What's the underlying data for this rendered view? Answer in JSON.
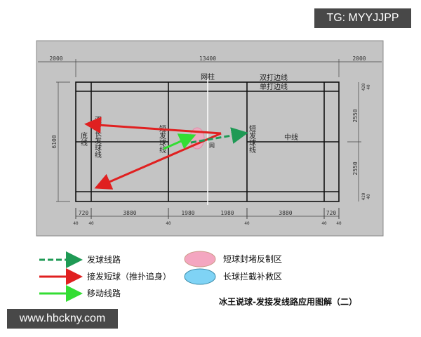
{
  "watermarks": {
    "top_right": "TG: MYYJJPP",
    "bottom_left": "www.hbckny.com"
  },
  "dimensions": {
    "top": [
      "2000",
      "13400",
      "2000"
    ],
    "left": "6100",
    "right": [
      "420",
      "40",
      "2550",
      "2550",
      "420",
      "40"
    ],
    "bottom": [
      "720",
      "3880",
      "1980",
      "1980",
      "3880",
      "720"
    ],
    "bottom_small": [
      "40",
      "40",
      "40",
      "40",
      "40",
      "40"
    ]
  },
  "court_labels": {
    "net_post": "网柱",
    "doubles_sideline": "双打边线",
    "singles_sideline": "单打边线",
    "baseline": "底线",
    "doubles_long_service_line": "双打长发球线",
    "short_service_line_left": "短发球线",
    "short_service_line_right": "短发球线",
    "center_line": "中线",
    "net": "网"
  },
  "legend": {
    "serve_route": "发球线路",
    "return_short": "接发短球（推扑追身）",
    "movement_route": "移动线路",
    "short_zone": "短球封堵反制区",
    "long_zone": "长球拦截补救区"
  },
  "colors": {
    "serve": "#1f9a55",
    "return": "#e02020",
    "move": "#33dd33",
    "short_zone": "#f4a6c0",
    "long_zone": "#7fd3f5",
    "panel": "#c4c4c4"
  },
  "caption": "冰王说球-发接发线路应用图解（二）"
}
